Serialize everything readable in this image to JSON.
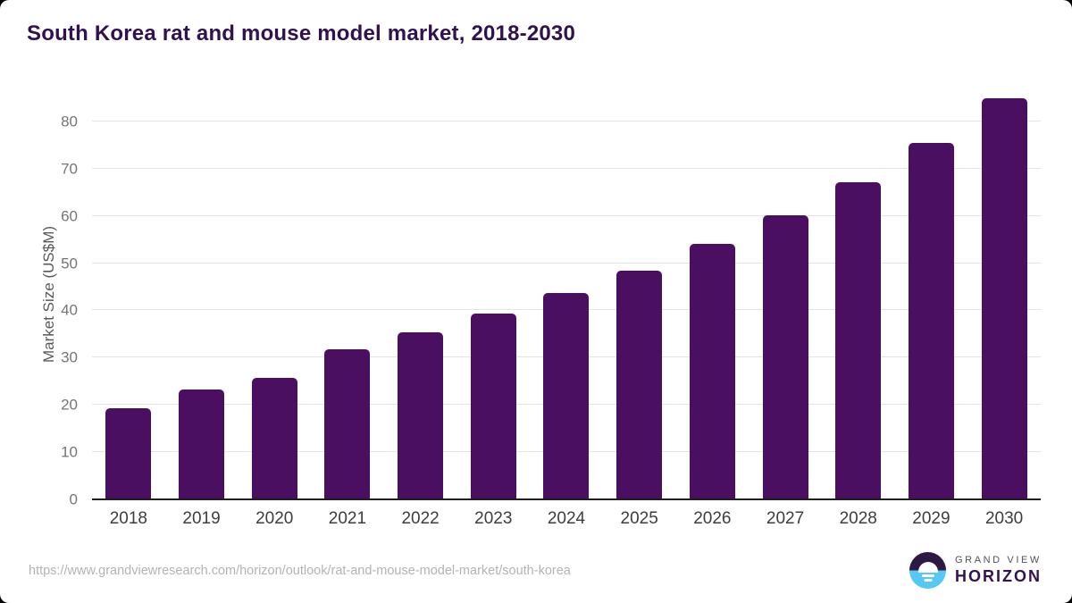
{
  "colors": {
    "bar": "#4a0f61",
    "title": "#311150",
    "grid": "#e4e4e4",
    "axis": "#1f1f1f",
    "ytick": "#757575",
    "xtick": "#3d3d3d",
    "ylabel": "#595959",
    "url": "#b3b3b3",
    "logo_dark": "#2c1a45",
    "logo_blue": "#57c7f3",
    "brand_gray": "#51515a",
    "brand_purple": "#331150"
  },
  "footer": {
    "source_url": "https://www.grandviewresearch.com/horizon/outlook/rat-and-mouse-model-market/south-korea",
    "brand_top": "GRAND VIEW",
    "brand_bottom": "HORIZON"
  },
  "chart_data": {
    "type": "bar",
    "title": "South Korea rat and mouse model market, 2018-2030",
    "xlabel": "",
    "ylabel": "Market Size (US$M)",
    "categories": [
      "2018",
      "2019",
      "2020",
      "2021",
      "2022",
      "2023",
      "2024",
      "2025",
      "2026",
      "2027",
      "2028",
      "2029",
      "2030"
    ],
    "values": [
      19.2,
      23.2,
      25.7,
      31.8,
      35.4,
      39.3,
      43.6,
      48.5,
      54.0,
      60.2,
      67.1,
      75.4,
      84.9
    ],
    "ylim": [
      0,
      86.8
    ],
    "yticks": [
      0,
      10,
      20,
      30,
      40,
      50,
      60,
      70,
      80
    ],
    "grid": "horizontal",
    "legend": "none",
    "bar_color": "#4a0f61"
  }
}
